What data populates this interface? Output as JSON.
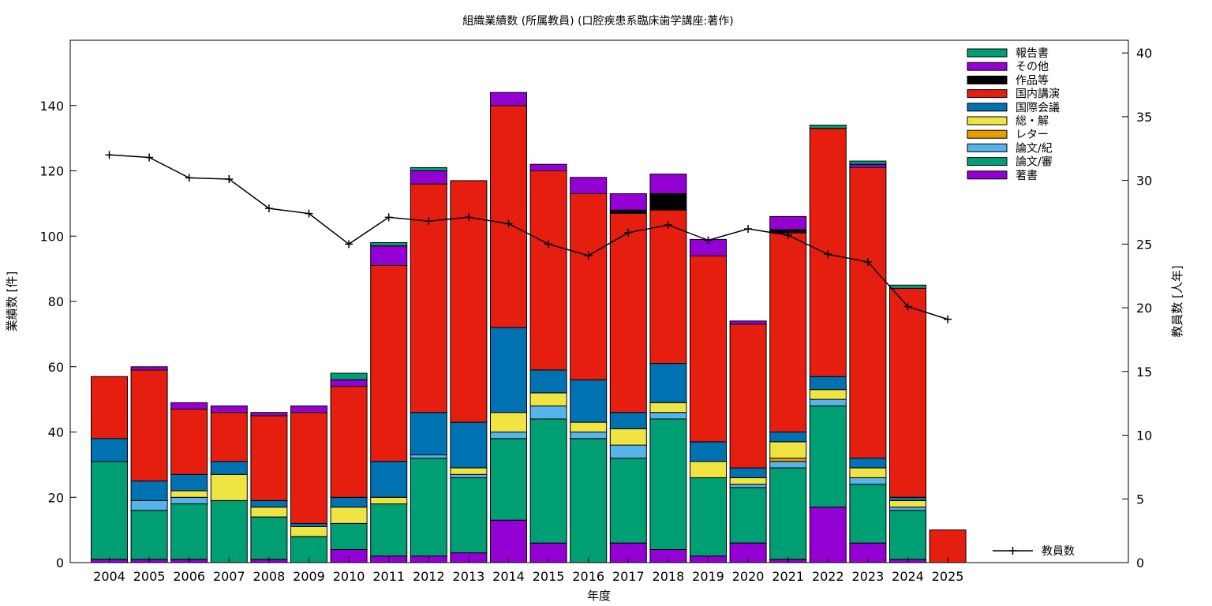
{
  "chart_data": {
    "type": "bar",
    "stacked": true,
    "title": "組織業績数 (所属教員) (口腔疾患系臨床歯学講座:著作)",
    "xlabel": "年度",
    "ylabel": "業績数 [件]",
    "y2label": "教員数 [人年]",
    "ylim": [
      0,
      160
    ],
    "y2lim": [
      0,
      41
    ],
    "yticks": [
      0,
      20,
      40,
      60,
      80,
      100,
      120,
      140
    ],
    "y2ticks": [
      0,
      5,
      10,
      15,
      20,
      25,
      30,
      35,
      40
    ],
    "grid": false,
    "legend_position": "top-right",
    "categories": [
      "2004",
      "2005",
      "2006",
      "2007",
      "2008",
      "2009",
      "2010",
      "2011",
      "2012",
      "2013",
      "2014",
      "2015",
      "2016",
      "2017",
      "2018",
      "2019",
      "2020",
      "2021",
      "2022",
      "2023",
      "2024",
      "2025"
    ],
    "series": [
      {
        "name": "著書",
        "color": "#9400d3",
        "values": [
          1,
          1,
          1,
          0,
          1,
          0,
          4,
          2,
          2,
          3,
          13,
          6,
          0,
          6,
          4,
          2,
          6,
          1,
          17,
          6,
          1,
          0
        ]
      },
      {
        "name": "論文/審",
        "color": "#009e73",
        "values": [
          30,
          15,
          17,
          19,
          13,
          8,
          8,
          16,
          30,
          23,
          25,
          38,
          38,
          26,
          40,
          24,
          17,
          28,
          31,
          18,
          15,
          0
        ]
      },
      {
        "name": "論文/紀",
        "color": "#56b4e9",
        "values": [
          0,
          3,
          2,
          0,
          0,
          0,
          0,
          0,
          1,
          1,
          2,
          4,
          2,
          4,
          2,
          0,
          1,
          2,
          2,
          2,
          1,
          0
        ]
      },
      {
        "name": "レター",
        "color": "#e69f00",
        "values": [
          0,
          0,
          0,
          0,
          0,
          0,
          0,
          0,
          0,
          0,
          0,
          0,
          0,
          0,
          0,
          0,
          0,
          1,
          0,
          0,
          0,
          0
        ]
      },
      {
        "name": "総・解",
        "color": "#f0e442",
        "values": [
          0,
          0,
          2,
          8,
          3,
          3,
          5,
          2,
          0,
          2,
          6,
          4,
          3,
          5,
          3,
          5,
          2,
          5,
          3,
          3,
          2,
          0
        ]
      },
      {
        "name": "国際会議",
        "color": "#0072b2",
        "values": [
          7,
          6,
          5,
          4,
          2,
          1,
          3,
          11,
          13,
          14,
          26,
          7,
          13,
          5,
          12,
          6,
          3,
          3,
          4,
          3,
          1,
          0
        ]
      },
      {
        "name": "国内講演",
        "color": "#e51e10",
        "values": [
          19,
          34,
          20,
          15,
          26,
          34,
          34,
          60,
          70,
          74,
          68,
          61,
          57,
          61,
          47,
          57,
          44,
          61,
          76,
          89,
          64,
          10
        ]
      },
      {
        "name": "作品等",
        "color": "#000000",
        "values": [
          0,
          0,
          0,
          0,
          0,
          0,
          0,
          0,
          0,
          0,
          0,
          0,
          0,
          1,
          5,
          0,
          0,
          1,
          0,
          0,
          0,
          0
        ]
      },
      {
        "name": "その他",
        "color": "#9400d3",
        "values": [
          0,
          1,
          2,
          2,
          1,
          2,
          2,
          6,
          4,
          0,
          4,
          2,
          5,
          5,
          6,
          5,
          1,
          4,
          0,
          1,
          0,
          0
        ]
      },
      {
        "name": "報告書",
        "color": "#009e73",
        "values": [
          0,
          0,
          0,
          0,
          0,
          0,
          2,
          1,
          1,
          0,
          0,
          0,
          0,
          0,
          0,
          0,
          0,
          0,
          1,
          1,
          1,
          0
        ]
      }
    ],
    "line": {
      "name": "教員数",
      "color": "#000000",
      "axis": "y2",
      "values": [
        32.0,
        31.8,
        30.2,
        30.1,
        27.8,
        27.4,
        25.0,
        27.1,
        26.8,
        27.1,
        26.6,
        25.0,
        24.1,
        25.9,
        26.5,
        25.3,
        26.2,
        25.7,
        24.2,
        23.6,
        20.1,
        19.1
      ]
    }
  }
}
